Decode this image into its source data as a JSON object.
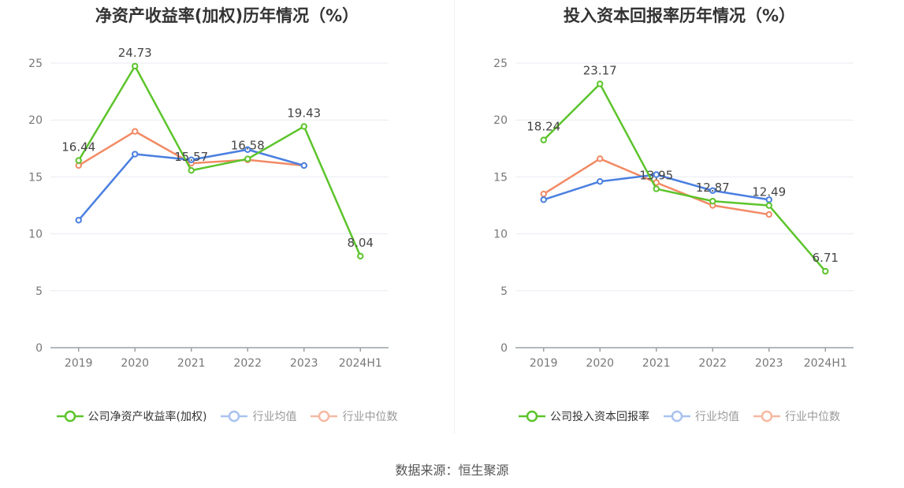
{
  "source_text": "数据来源：恒生聚源",
  "colors": {
    "company": "#5cc42b",
    "avg": "#4a7fe0",
    "median": "#f28a64",
    "grid": "#e8ebf3",
    "axis": "#9aa0a6",
    "tick_text": "#777777",
    "label_text": "#444444"
  },
  "chart_data": [
    {
      "type": "line",
      "title": "净资产收益率(加权)历年情况（%）",
      "categories": [
        "2019",
        "2020",
        "2021",
        "2022",
        "2023",
        "2024H1"
      ],
      "ylim": [
        0,
        25
      ],
      "yticks": [
        "0",
        "5",
        "10",
        "15",
        "20",
        "25"
      ],
      "grid": true,
      "legend_position": "bottom",
      "series": [
        {
          "name": "公司净资产收益率(加权)",
          "color_key": "company",
          "values": [
            16.44,
            24.73,
            15.57,
            16.58,
            19.43,
            8.04
          ],
          "labels": [
            "16.44",
            "24.73",
            "15.57",
            "16.58",
            "19.43",
            "8.04"
          ]
        },
        {
          "name": "行业均值",
          "color_key": "avg",
          "values": [
            11.2,
            17.0,
            16.5,
            17.4,
            16.0,
            null
          ]
        },
        {
          "name": "行业中位数",
          "color_key": "median",
          "values": [
            16.0,
            19.0,
            16.2,
            16.5,
            16.0,
            null
          ]
        }
      ]
    },
    {
      "type": "line",
      "title": "投入资本回报率历年情况（%）",
      "categories": [
        "2019",
        "2020",
        "2021",
        "2022",
        "2023",
        "2024H1"
      ],
      "ylim": [
        0,
        25
      ],
      "yticks": [
        "0",
        "5",
        "10",
        "15",
        "20",
        "25"
      ],
      "grid": true,
      "legend_position": "bottom",
      "series": [
        {
          "name": "公司投入资本回报率",
          "color_key": "company",
          "values": [
            18.24,
            23.17,
            13.95,
            12.87,
            12.49,
            6.71
          ],
          "labels": [
            "18.24",
            "23.17",
            "13.95",
            "12.87",
            "12.49",
            "6.71"
          ]
        },
        {
          "name": "行业均值",
          "color_key": "avg",
          "values": [
            13.0,
            14.6,
            15.2,
            13.8,
            13.0,
            null
          ]
        },
        {
          "name": "行业中位数",
          "color_key": "median",
          "values": [
            13.5,
            16.6,
            14.5,
            12.5,
            11.7,
            null
          ]
        }
      ]
    }
  ]
}
